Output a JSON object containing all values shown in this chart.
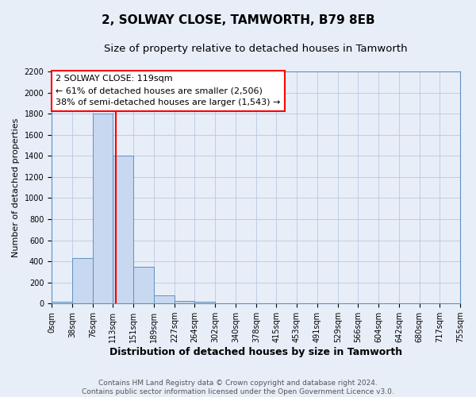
{
  "title": "2, SOLWAY CLOSE, TAMWORTH, B79 8EB",
  "subtitle": "Size of property relative to detached houses in Tamworth",
  "xlabel": "Distribution of detached houses by size in Tamworth",
  "ylabel": "Number of detached properties",
  "bin_edges": [
    0,
    38,
    76,
    113,
    151,
    189,
    227,
    264,
    302,
    340,
    378,
    415,
    453,
    491,
    529,
    566,
    604,
    642,
    680,
    717,
    755
  ],
  "bar_heights": [
    20,
    430,
    1800,
    1400,
    350,
    80,
    25,
    15,
    5,
    3,
    0,
    0,
    0,
    0,
    0,
    0,
    0,
    0,
    0,
    0
  ],
  "bar_color": "#c8d8f0",
  "bar_edge_color": "#6090c0",
  "red_line_x": 119,
  "ylim": [
    0,
    2200
  ],
  "yticks": [
    0,
    200,
    400,
    600,
    800,
    1000,
    1200,
    1400,
    1600,
    1800,
    2000,
    2200
  ],
  "ann_line1": "2 SOLWAY CLOSE: 119sqm",
  "ann_line2": "← 61% of detached houses are smaller (2,506)",
  "ann_line3": "38% of semi-detached houses are larger (1,543) →",
  "footer_text": "Contains HM Land Registry data © Crown copyright and database right 2024.\nContains public sector information licensed under the Open Government Licence v3.0.",
  "background_color": "#e8eef8",
  "grid_color": "#b8c8e0",
  "title_fontsize": 11,
  "subtitle_fontsize": 9.5,
  "xlabel_fontsize": 9,
  "ylabel_fontsize": 8,
  "tick_fontsize": 7,
  "footer_fontsize": 6.5,
  "ann_fontsize": 8
}
